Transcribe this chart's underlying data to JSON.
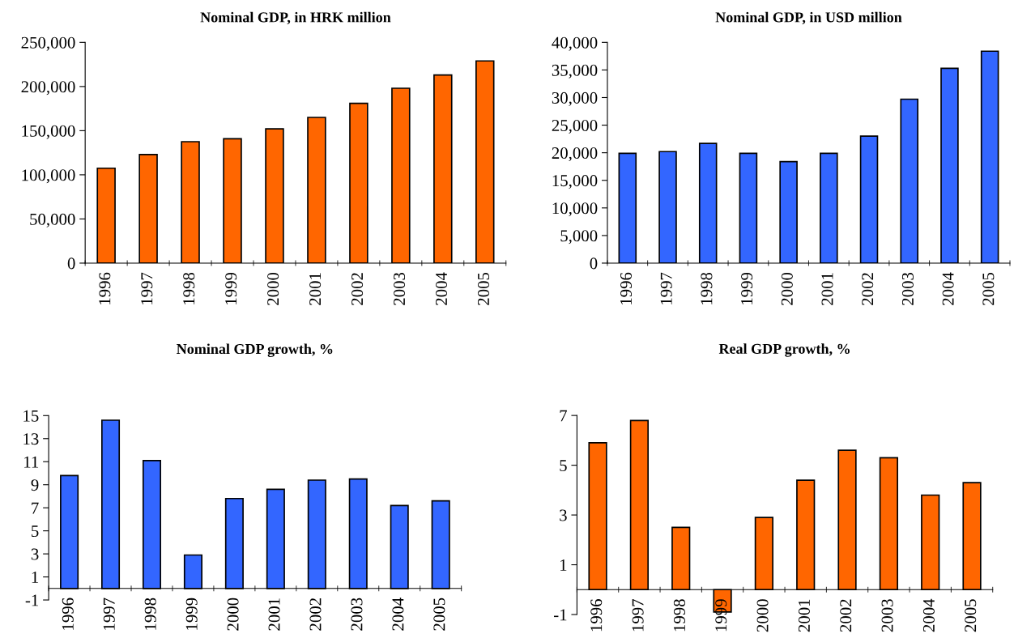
{
  "chart_data": [
    {
      "type": "bar",
      "title": "Nominal GDP, in HRK million",
      "categories": [
        "1996",
        "1997",
        "1998",
        "1999",
        "2000",
        "2001",
        "2002",
        "2003",
        "2004",
        "2005"
      ],
      "values": [
        107500,
        123000,
        137500,
        140800,
        152000,
        165000,
        181000,
        198000,
        213000,
        229000
      ],
      "color": "#ff6600",
      "ylim": [
        0,
        250000
      ],
      "yticks": [
        0,
        {
          "value": 50000,
          "label": "50,000"
        },
        {
          "value": 100000,
          "label": "100,000"
        },
        {
          "value": 150000,
          "label": "150,000"
        },
        {
          "value": 200000,
          "label": "200,000"
        },
        {
          "value": 250000,
          "label": "250,000"
        }
      ]
    },
    {
      "type": "bar",
      "title": "Nominal GDP, in USD million",
      "categories": [
        "1996",
        "1997",
        "1998",
        "1999",
        "2000",
        "2001",
        "2002",
        "2003",
        "2004",
        "2005"
      ],
      "values": [
        19900,
        20200,
        21700,
        19900,
        18400,
        19900,
        23000,
        29700,
        35300,
        38400
      ],
      "color": "#3366ff",
      "ylim": [
        0,
        40000
      ],
      "yticks": [
        0,
        {
          "value": 5000,
          "label": "5,000"
        },
        {
          "value": 10000,
          "label": "10,000"
        },
        {
          "value": 15000,
          "label": "15,000"
        },
        {
          "value": 20000,
          "label": "20,000"
        },
        {
          "value": 25000,
          "label": "25,000"
        },
        {
          "value": 30000,
          "label": "30,000"
        },
        {
          "value": 35000,
          "label": "35,000"
        },
        {
          "value": 40000,
          "label": "40,000"
        }
      ]
    },
    {
      "type": "bar",
      "title": "Nominal GDP growth, %",
      "categories": [
        "1996",
        "1997",
        "1998",
        "1999",
        "2000",
        "2001",
        "2002",
        "2003",
        "2004",
        "2005"
      ],
      "values": [
        9.8,
        14.6,
        11.1,
        2.9,
        7.8,
        8.6,
        9.4,
        9.5,
        7.2,
        7.6
      ],
      "color": "#3366ff",
      "ylim": [
        -1,
        15
      ],
      "yticks": [
        -1,
        1,
        3,
        5,
        7,
        9,
        11,
        13,
        15
      ]
    },
    {
      "type": "bar",
      "title": "Real GDP growth, %",
      "categories": [
        "1996",
        "1997",
        "1998",
        "1999",
        "2000",
        "2001",
        "2002",
        "2003",
        "2004",
        "2005"
      ],
      "values": [
        5.9,
        6.8,
        2.5,
        -0.9,
        2.9,
        4.4,
        5.6,
        5.3,
        3.8,
        4.3
      ],
      "color": "#ff6600",
      "ylim": [
        -1,
        7
      ],
      "yticks": [
        -1,
        1,
        3,
        5,
        7
      ]
    }
  ]
}
